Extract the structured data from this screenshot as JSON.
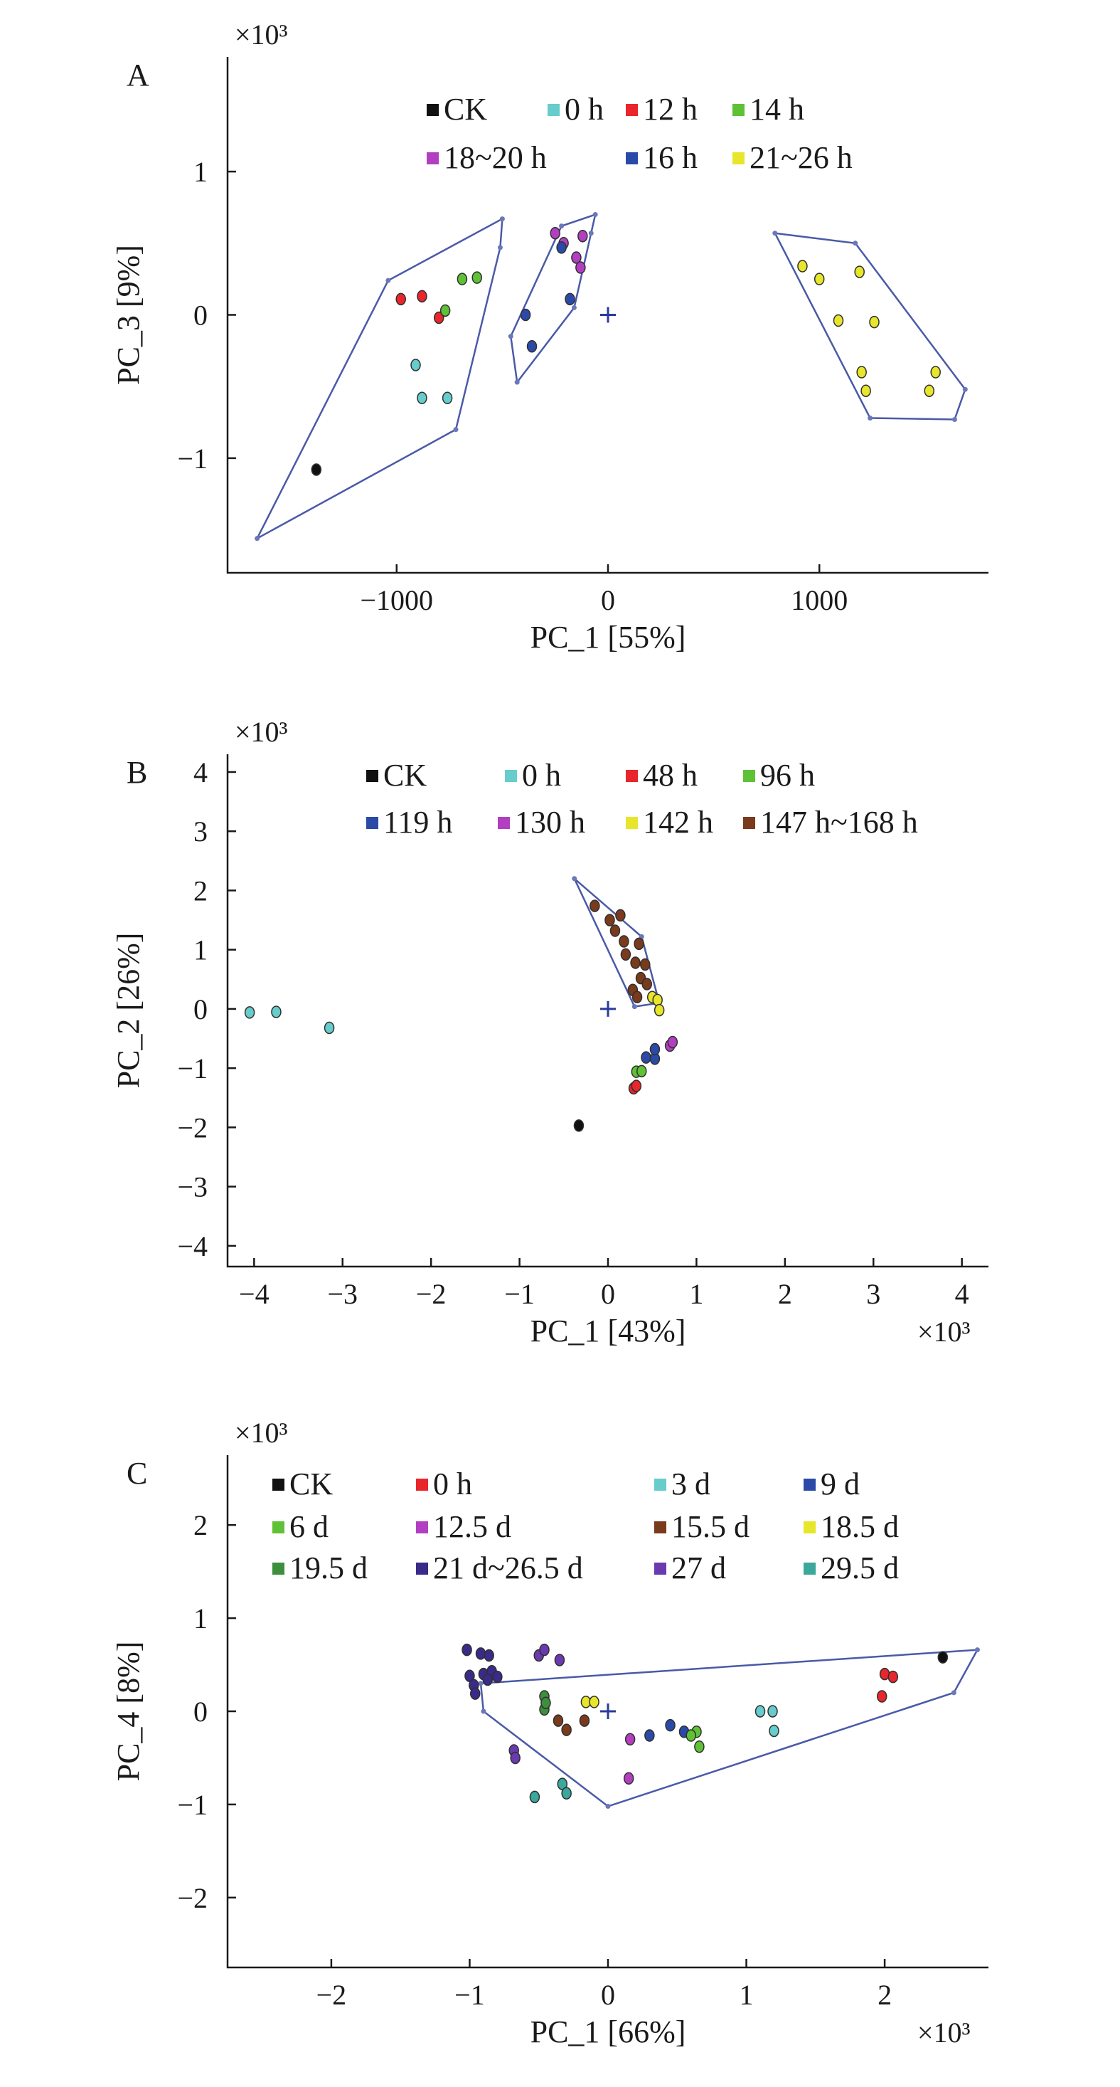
{
  "chart_data": [
    {
      "panel": "A",
      "type": "scatter",
      "xlabel": "PC_1 [55%]",
      "ylabel": "PC_3 [9%]",
      "multiplier": "×10³",
      "multiplier_position": "top-left",
      "xlim": [
        -1800,
        1800
      ],
      "ylim": [
        -1.8,
        1.8
      ],
      "xticks": [
        -1000,
        0,
        1000
      ],
      "xtick_labels": [
        "−1000",
        "0",
        "1000"
      ],
      "yticks": [
        1,
        0,
        -1
      ],
      "ytick_labels": [
        "1",
        "0",
        "−1"
      ],
      "legend": [
        {
          "label": "CK",
          "color": "#111111"
        },
        {
          "label": "0 h",
          "color": "#66cccc"
        },
        {
          "label": "12 h",
          "color": "#e8262b"
        },
        {
          "label": "14 h",
          "color": "#5fc236"
        },
        {
          "label": "18~20 h",
          "color": "#b23fc0"
        },
        {
          "label": "16 h",
          "color": "#2b4aa8"
        },
        {
          "label": "21~26 h",
          "color": "#e7e62a"
        }
      ],
      "series": [
        {
          "name": "CK",
          "color": "#111111",
          "points": [
            [
              -1380,
              -1.08
            ]
          ]
        },
        {
          "name": "0 h",
          "color": "#66cccc",
          "points": [
            [
              -910,
              -0.35
            ],
            [
              -880,
              -0.58
            ],
            [
              -760,
              -0.58
            ]
          ]
        },
        {
          "name": "12 h",
          "color": "#e8262b",
          "points": [
            [
              -980,
              0.11
            ],
            [
              -880,
              0.13
            ],
            [
              -800,
              -0.02
            ]
          ]
        },
        {
          "name": "14 h",
          "color": "#5fc236",
          "points": [
            [
              -770,
              0.03
            ],
            [
              -690,
              0.25
            ],
            [
              -620,
              0.26
            ]
          ]
        },
        {
          "name": "18~20 h",
          "color": "#b23fc0",
          "points": [
            [
              -210,
              0.5
            ],
            [
              -150,
              0.4
            ],
            [
              -120,
              0.55
            ],
            [
              -130,
              0.33
            ],
            [
              -250,
              0.57
            ]
          ]
        },
        {
          "name": "16 h",
          "color": "#2b4aa8",
          "points": [
            [
              -390,
              0.0
            ],
            [
              -360,
              -0.22
            ],
            [
              -180,
              0.11
            ],
            [
              -220,
              0.47
            ]
          ]
        },
        {
          "name": "21~26 h",
          "color": "#e7e62a",
          "points": [
            [
              920,
              0.34
            ],
            [
              1000,
              0.25
            ],
            [
              1190,
              0.3
            ],
            [
              1090,
              -0.04
            ],
            [
              1260,
              -0.05
            ],
            [
              1200,
              -0.4
            ],
            [
              1220,
              -0.53
            ],
            [
              1550,
              -0.4
            ],
            [
              1520,
              -0.53
            ]
          ]
        }
      ],
      "hulls": [
        [
          [
            -1660,
            -1.56
          ],
          [
            -1040,
            0.24
          ],
          [
            -500,
            0.67
          ],
          [
            -510,
            0.47
          ],
          [
            -720,
            -0.8
          ]
        ],
        [
          [
            -460,
            -0.15
          ],
          [
            -220,
            0.62
          ],
          [
            -60,
            0.7
          ],
          [
            -80,
            0.57
          ],
          [
            -160,
            0.05
          ],
          [
            -430,
            -0.47
          ]
        ],
        [
          [
            790,
            0.57
          ],
          [
            1170,
            0.5
          ],
          [
            1690,
            -0.52
          ],
          [
            1640,
            -0.73
          ],
          [
            1240,
            -0.72
          ]
        ]
      ]
    },
    {
      "panel": "B",
      "type": "scatter",
      "xlabel": "PC_1 [43%]",
      "ylabel": "PC_2 [26%]",
      "multiplier": "×10³",
      "multiplier_position": "top-left",
      "multiplier_x": "×10³",
      "xlim": [
        -4.3,
        4.3
      ],
      "ylim": [
        -4.35,
        4.3
      ],
      "xticks": [
        -4,
        -3,
        -2,
        -1,
        0,
        1,
        2,
        3,
        4
      ],
      "xtick_labels": [
        "−4",
        "−3",
        "−2",
        "−1",
        "0",
        "1",
        "2",
        "3",
        "4"
      ],
      "yticks": [
        4,
        3,
        2,
        1,
        0,
        -1,
        -2,
        -3,
        -4
      ],
      "ytick_labels": [
        "4",
        "3",
        "2",
        "1",
        "0",
        "−1",
        "−2",
        "−3",
        "−4"
      ],
      "legend": [
        {
          "label": "CK",
          "color": "#111111"
        },
        {
          "label": "0 h",
          "color": "#66cccc"
        },
        {
          "label": "48 h",
          "color": "#e8262b"
        },
        {
          "label": "96 h",
          "color": "#5fc236"
        },
        {
          "label": "119 h",
          "color": "#2b4aa8"
        },
        {
          "label": "130 h",
          "color": "#b23fc0"
        },
        {
          "label": "142 h",
          "color": "#e7e62a"
        },
        {
          "label": "147 h~168 h",
          "color": "#7a3a1c"
        }
      ],
      "series": [
        {
          "name": "CK",
          "color": "#111111",
          "points": [
            [
              -0.33,
              -1.97
            ]
          ]
        },
        {
          "name": "0 h",
          "color": "#66cccc",
          "points": [
            [
              -4.05,
              -0.06
            ],
            [
              -3.75,
              -0.05
            ],
            [
              -3.15,
              -0.32
            ]
          ]
        },
        {
          "name": "48 h",
          "color": "#e8262b",
          "points": [
            [
              0.29,
              -1.34
            ],
            [
              0.32,
              -1.3
            ]
          ]
        },
        {
          "name": "96 h",
          "color": "#5fc236",
          "points": [
            [
              0.32,
              -1.06
            ],
            [
              0.38,
              -1.05
            ]
          ]
        },
        {
          "name": "119 h",
          "color": "#2b4aa8",
          "points": [
            [
              0.43,
              -0.82
            ],
            [
              0.53,
              -0.84
            ],
            [
              0.53,
              -0.68
            ]
          ]
        },
        {
          "name": "130 h",
          "color": "#b23fc0",
          "points": [
            [
              0.7,
              -0.62
            ],
            [
              0.73,
              -0.56
            ]
          ]
        },
        {
          "name": "142 h",
          "color": "#e7e62a",
          "points": [
            [
              0.5,
              0.2
            ],
            [
              0.56,
              0.15
            ],
            [
              0.58,
              -0.02
            ]
          ]
        },
        {
          "name": "147 h~168 h",
          "color": "#7a3a1c",
          "points": [
            [
              -0.15,
              1.74
            ],
            [
              0.02,
              1.5
            ],
            [
              0.08,
              1.32
            ],
            [
              0.18,
              1.14
            ],
            [
              0.35,
              1.1
            ],
            [
              0.2,
              0.92
            ],
            [
              0.31,
              0.78
            ],
            [
              0.42,
              0.75
            ],
            [
              0.37,
              0.52
            ],
            [
              0.28,
              0.32
            ],
            [
              0.44,
              0.42
            ],
            [
              0.33,
              0.2
            ],
            [
              0.14,
              1.58
            ]
          ]
        }
      ],
      "hulls": [
        [
          [
            -0.38,
            2.2
          ],
          [
            0.38,
            1.22
          ],
          [
            0.58,
            0.1
          ],
          [
            0.3,
            0.04
          ]
        ]
      ]
    },
    {
      "panel": "C",
      "type": "scatter",
      "xlabel": "PC_1 [66%]",
      "ylabel": "PC_4 [8%]",
      "multiplier": "×10³",
      "multiplier_position": "top-left",
      "multiplier_x": "×10³",
      "xlim": [
        -2.75,
        2.75
      ],
      "ylim": [
        -2.75,
        2.75
      ],
      "xticks": [
        -2,
        -1,
        0,
        1,
        2
      ],
      "xtick_labels": [
        "−2",
        "−1",
        "0",
        "1",
        "2"
      ],
      "yticks": [
        2,
        1,
        0,
        -1,
        -2
      ],
      "ytick_labels": [
        "2",
        "1",
        "0",
        "−1",
        "−2"
      ],
      "legend": [
        {
          "label": "CK",
          "color": "#111111"
        },
        {
          "label": "0 h",
          "color": "#e8262b"
        },
        {
          "label": "3 d",
          "color": "#66cccc"
        },
        {
          "label": "9 d",
          "color": "#2b4aa8"
        },
        {
          "label": "6 d",
          "color": "#5fc236"
        },
        {
          "label": "12.5 d",
          "color": "#b23fc0"
        },
        {
          "label": "15.5 d",
          "color": "#7a3a1c"
        },
        {
          "label": "18.5 d",
          "color": "#e7e62a"
        },
        {
          "label": "19.5 d",
          "color": "#3d8f3d"
        },
        {
          "label": "21 d~26.5 d",
          "color": "#3a2a8a"
        },
        {
          "label": "27 d",
          "color": "#6a3ab0"
        },
        {
          "label": "29.5 d",
          "color": "#3aa89a"
        }
      ],
      "series": [
        {
          "name": "CK",
          "color": "#111111",
          "points": [
            [
              2.42,
              0.58
            ]
          ]
        },
        {
          "name": "0 h",
          "color": "#e8262b",
          "points": [
            [
              2.0,
              0.4
            ],
            [
              2.06,
              0.37
            ],
            [
              1.98,
              0.16
            ]
          ]
        },
        {
          "name": "3 d",
          "color": "#66cccc",
          "points": [
            [
              1.1,
              0.0
            ],
            [
              1.19,
              0.0
            ],
            [
              1.2,
              -0.21
            ]
          ]
        },
        {
          "name": "9 d",
          "color": "#2b4aa8",
          "points": [
            [
              0.45,
              -0.15
            ],
            [
              0.55,
              -0.22
            ],
            [
              0.3,
              -0.26
            ]
          ]
        },
        {
          "name": "6 d",
          "color": "#5fc236",
          "points": [
            [
              0.64,
              -0.22
            ],
            [
              0.66,
              -0.38
            ],
            [
              0.6,
              -0.26
            ]
          ]
        },
        {
          "name": "12.5 d",
          "color": "#b23fc0",
          "points": [
            [
              0.16,
              -0.3
            ],
            [
              0.15,
              -0.72
            ]
          ]
        },
        {
          "name": "15.5 d",
          "color": "#7a3a1c",
          "points": [
            [
              -0.36,
              -0.1
            ],
            [
              -0.3,
              -0.2
            ],
            [
              -0.17,
              -0.1
            ]
          ]
        },
        {
          "name": "18.5 d",
          "color": "#e7e62a",
          "points": [
            [
              -0.16,
              0.1
            ],
            [
              -0.1,
              0.1
            ]
          ]
        },
        {
          "name": "19.5 d",
          "color": "#3d8f3d",
          "points": [
            [
              -0.46,
              0.16
            ],
            [
              -0.46,
              0.02
            ],
            [
              -0.45,
              0.09
            ]
          ]
        },
        {
          "name": "21 d~26.5 d",
          "color": "#3a2a8a",
          "points": [
            [
              -1.02,
              0.66
            ],
            [
              -0.92,
              0.62
            ],
            [
              -0.86,
              0.6
            ],
            [
              -1.0,
              0.38
            ],
            [
              -0.9,
              0.4
            ],
            [
              -0.84,
              0.43
            ],
            [
              -0.8,
              0.37
            ],
            [
              -0.97,
              0.28
            ],
            [
              -0.96,
              0.19
            ],
            [
              -0.87,
              0.34
            ]
          ]
        },
        {
          "name": "27 d",
          "color": "#6a3ab0",
          "points": [
            [
              -0.5,
              0.6
            ],
            [
              -0.46,
              0.66
            ],
            [
              -0.35,
              0.55
            ],
            [
              -0.68,
              -0.42
            ],
            [
              -0.67,
              -0.5
            ]
          ]
        },
        {
          "name": "29.5 d",
          "color": "#3aa89a",
          "points": [
            [
              -0.53,
              -0.92
            ],
            [
              -0.33,
              -0.78
            ],
            [
              -0.3,
              -0.88
            ]
          ]
        }
      ],
      "hulls": [
        [
          [
            -0.92,
            0.3
          ],
          [
            2.67,
            0.66
          ],
          [
            2.5,
            0.2
          ],
          [
            0.0,
            -1.02
          ],
          [
            -0.9,
            0.0
          ]
        ]
      ]
    }
  ]
}
